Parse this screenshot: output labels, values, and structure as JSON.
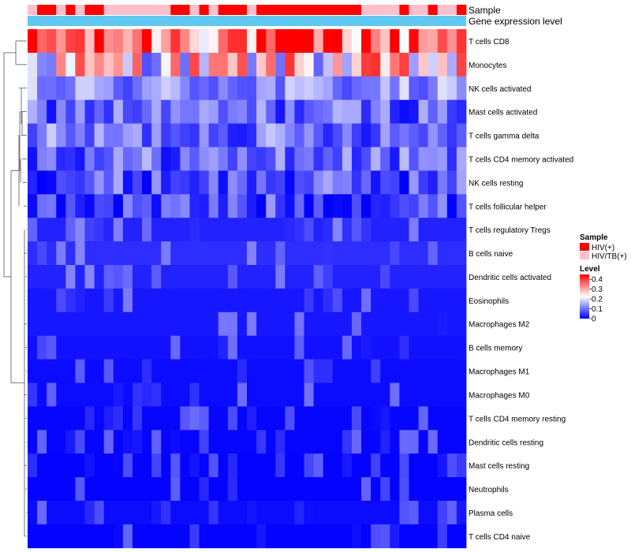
{
  "chart_data": {
    "type": "heatmap",
    "title": "",
    "annotation_tracks": [
      {
        "name": "Sample",
        "label": "Sample"
      },
      {
        "name": "Gene expression level",
        "label": "Gene expression level"
      }
    ],
    "sample_track": [
      "HIV/TB(+)",
      "HIV(+)",
      "HIV(+)",
      "HIV/TB(+)",
      "HIV(+)",
      "HIV/TB(+)",
      "HIV(+)",
      "HIV(+)",
      "HIV/TB(+)",
      "HIV/TB(+)",
      "HIV/TB(+)",
      "HIV/TB(+)",
      "HIV/TB(+)",
      "HIV/TB(+)",
      "HIV/TB(+)",
      "HIV(+)",
      "HIV(+)",
      "HIV/TB(+)",
      "HIV(+)",
      "HIV/TB(+)",
      "HIV(+)",
      "HIV(+)",
      "HIV(+)",
      "HIV/TB(+)",
      "HIV(+)",
      "HIV(+)",
      "HIV(+)",
      "HIV(+)",
      "HIV(+)",
      "HIV(+)",
      "HIV(+)",
      "HIV(+)",
      "HIV(+)",
      "HIV(+)",
      "HIV(+)",
      "HIV/TB(+)",
      "HIV/TB(+)",
      "HIV/TB(+)",
      "HIV/TB(+)",
      "HIV(+)",
      "HIV/TB(+)",
      "HIV/TB(+)",
      "HIV(+)",
      "HIV/TB(+)",
      "HIV/TB(+)",
      "HIV(+)"
    ],
    "rows": [
      "T cells CD8",
      "Monocytes",
      "NK cells activated",
      "Mast cells activated",
      "T cells gamma delta",
      "T cells CD4 memory activated",
      "NK cells resting",
      "T cells follicular helper",
      "T cells regulatory  Tregs",
      "B cells naive",
      "Dendritic cells activated",
      "Eosinophils",
      "Macrophages M2",
      "B cells memory",
      "Macrophages M1",
      "Macrophages M0",
      "T cells CD4 memory resting",
      "Dendritic cells resting",
      "Mast cells resting",
      "Neutrophils",
      "Plasma cells",
      "T cells CD4 naive"
    ],
    "row_base_levels": [
      0.36,
      0.24,
      0.12,
      0.09,
      0.1,
      0.09,
      0.07,
      0.06,
      0.03,
      0.04,
      0.03,
      0.02,
      0.02,
      0.015,
      0.01,
      0.01,
      0.005,
      0.005,
      0.003,
      0.003,
      0.01,
      0.003
    ],
    "n_columns": 46,
    "value_range": [
      0,
      0.45
    ],
    "legend_sample": {
      "title": "Sample",
      "entries": [
        {
          "label": "HIV(+)",
          "color": "#ff0000"
        },
        {
          "label": "HIV/TB(+)",
          "color": "#ffc0cb"
        }
      ]
    },
    "legend_level": {
      "title": "Level",
      "ticks": [
        "0.4",
        "0.3",
        "0.2",
        "0.1",
        "0"
      ],
      "tick_values": [
        0.4,
        0.3,
        0.2,
        0.1,
        0
      ]
    },
    "colors": {
      "low": "#0000ff",
      "mid": "#ffffff",
      "high": "#ff0000",
      "hiv": "#ff0000",
      "hivtb": "#ffc0cb",
      "gene_track": "#5fc8f0",
      "dendrogram": "#555555"
    }
  }
}
